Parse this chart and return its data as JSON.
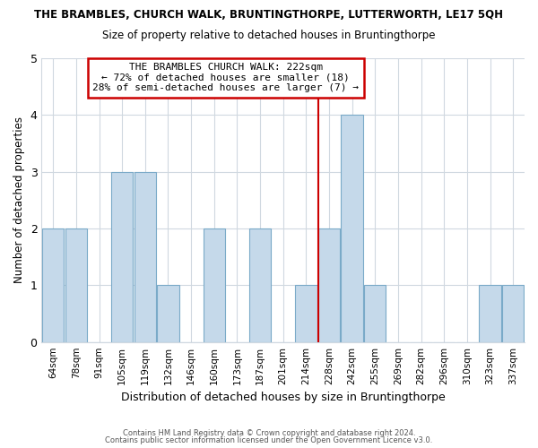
{
  "title": "THE BRAMBLES, CHURCH WALK, BRUNTINGTHORPE, LUTTERWORTH, LE17 5QH",
  "subtitle": "Size of property relative to detached houses in Bruntingthorpe",
  "xlabel": "Distribution of detached houses by size in Bruntingthorpe",
  "ylabel": "Number of detached properties",
  "categories": [
    "64sqm",
    "78sqm",
    "91sqm",
    "105sqm",
    "119sqm",
    "132sqm",
    "146sqm",
    "160sqm",
    "173sqm",
    "187sqm",
    "201sqm",
    "214sqm",
    "228sqm",
    "242sqm",
    "255sqm",
    "269sqm",
    "282sqm",
    "296sqm",
    "310sqm",
    "323sqm",
    "337sqm"
  ],
  "values": [
    2,
    2,
    0,
    3,
    3,
    1,
    0,
    2,
    0,
    2,
    0,
    1,
    2,
    4,
    1,
    0,
    0,
    0,
    0,
    1,
    1
  ],
  "bar_color": "#c5d9ea",
  "bar_edge_color": "#7aaac8",
  "highlight_line_index": 12,
  "highlight_line_color": "#cc0000",
  "ylim": [
    0,
    5
  ],
  "yticks": [
    0,
    1,
    2,
    3,
    4,
    5
  ],
  "annotation_title": "THE BRAMBLES CHURCH WALK: 222sqm",
  "annotation_line1": "← 72% of detached houses are smaller (18)",
  "annotation_line2": "28% of semi-detached houses are larger (7) →",
  "annotation_box_color": "#ffffff",
  "annotation_box_edge": "#cc0000",
  "footer_line1": "Contains HM Land Registry data © Crown copyright and database right 2024.",
  "footer_line2": "Contains public sector information licensed under the Open Government Licence v3.0.",
  "background_color": "#ffffff",
  "grid_color": "#d0d8e0"
}
